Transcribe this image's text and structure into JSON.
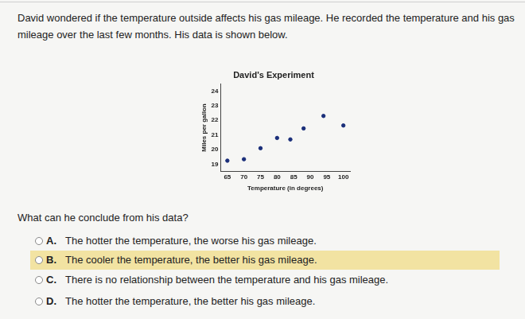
{
  "intro": "David wondered if the temperature outside affects his gas mileage. He recorded the temperature and his gas mileage over the last few months. His data is shown below.",
  "chart_data": {
    "type": "scatter",
    "title": "David's Experiment",
    "x_label": "Temperature (in degrees)",
    "y_label": "Miles per gallon",
    "x": [
      65,
      70,
      75,
      80,
      84,
      88,
      94,
      100
    ],
    "values": [
      19.25,
      19.35,
      20.1,
      20.8,
      20.7,
      21.45,
      22.3,
      21.65
    ],
    "xlim": [
      63,
      102
    ],
    "ylim": [
      18.5,
      24.5
    ],
    "xticks": [
      65,
      70,
      75,
      80,
      85,
      90,
      95,
      100
    ],
    "yticks": [
      19,
      20,
      21,
      22,
      23,
      24
    ],
    "color": "#1b2f7a",
    "marker": "circle",
    "grid": false
  },
  "question": "What can he conclude from his data?",
  "options": [
    {
      "letter": "A.",
      "text": "The hotter the temperature, the worse his gas mileage."
    },
    {
      "letter": "B.",
      "text": "The cooler the temperature, the better his gas mileage.",
      "highlighted": true
    },
    {
      "letter": "C.",
      "text": "There is no relationship between the temperature and his gas mileage."
    },
    {
      "letter": "D.",
      "text": "The hotter the temperature, the better his gas mileage."
    }
  ]
}
